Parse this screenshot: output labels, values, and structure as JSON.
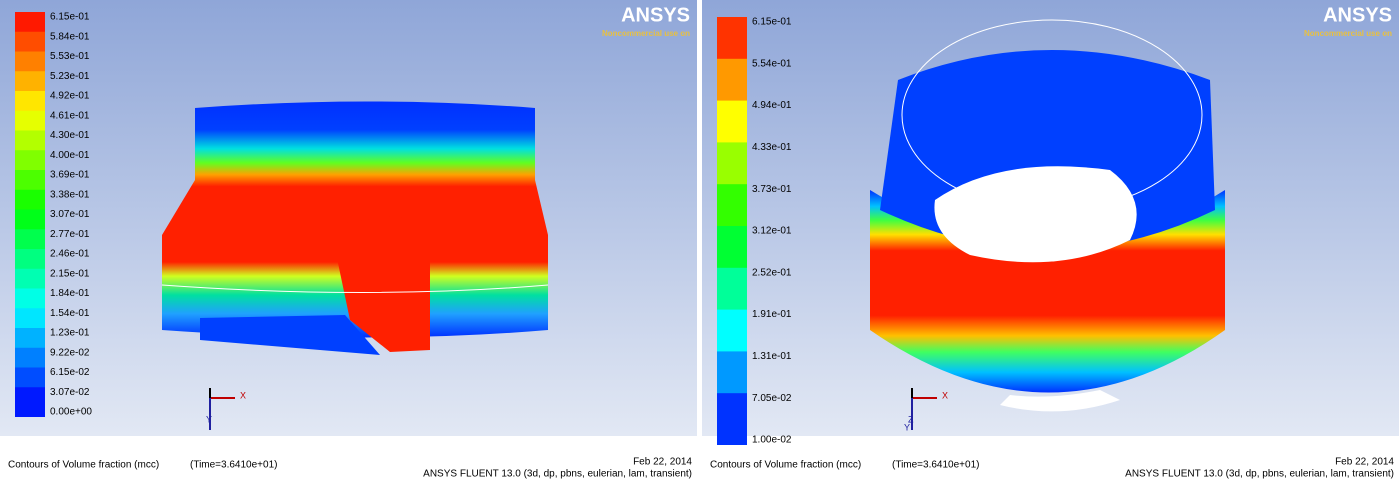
{
  "panels": [
    {
      "logo": {
        "brand": "ANSYS",
        "note": "Noncommercial use on"
      },
      "colorbar": {
        "labels": [
          "6.15e-01",
          "5.84e-01",
          "5.53e-01",
          "5.23e-01",
          "4.92e-01",
          "4.61e-01",
          "4.30e-01",
          "4.00e-01",
          "3.69e-01",
          "3.38e-01",
          "3.07e-01",
          "2.77e-01",
          "2.46e-01",
          "2.15e-01",
          "1.84e-01",
          "1.54e-01",
          "1.23e-01",
          "9.22e-02",
          "6.15e-02",
          "3.07e-02",
          "0.00e+00"
        ]
      },
      "axes": [
        "X",
        "Y"
      ],
      "caption": {
        "title": "Contours of Volume fraction (mcc)",
        "time": "(Time=3.6410e+01)",
        "date": "Feb 22, 2014",
        "solver": "ANSYS FLUENT 13.0 (3d, dp, pbns, eulerian, lam, transient)"
      }
    },
    {
      "logo": {
        "brand": "ANSYS",
        "note": "Noncommercial use on"
      },
      "colorbar": {
        "labels": [
          "6.15e-01",
          "5.54e-01",
          "4.94e-01",
          "4.33e-01",
          "3.73e-01",
          "3.12e-01",
          "2.52e-01",
          "1.91e-01",
          "1.31e-01",
          "7.05e-02",
          "1.00e-02"
        ]
      },
      "axes": [
        "X",
        "Z",
        "Y"
      ],
      "caption": {
        "title": "Contours of Volume fraction (mcc)",
        "time": "(Time=3.6410e+01)",
        "date": "Feb 22, 2014",
        "solver": "ANSYS FLUENT 13.0 (3d, dp, pbns, eulerian, lam, transient)"
      }
    }
  ]
}
